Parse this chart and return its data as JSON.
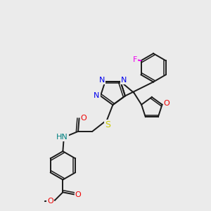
{
  "background_color": "#ebebeb",
  "bond_color": "#1a1a1a",
  "N_color": "#0000ee",
  "O_color": "#ee0000",
  "S_color": "#cccc00",
  "F_color": "#ee00ee",
  "NH_color": "#008080",
  "figsize": [
    3.0,
    3.0
  ],
  "dpi": 100,
  "xlim": [
    0,
    10
  ],
  "ylim": [
    0,
    10
  ]
}
